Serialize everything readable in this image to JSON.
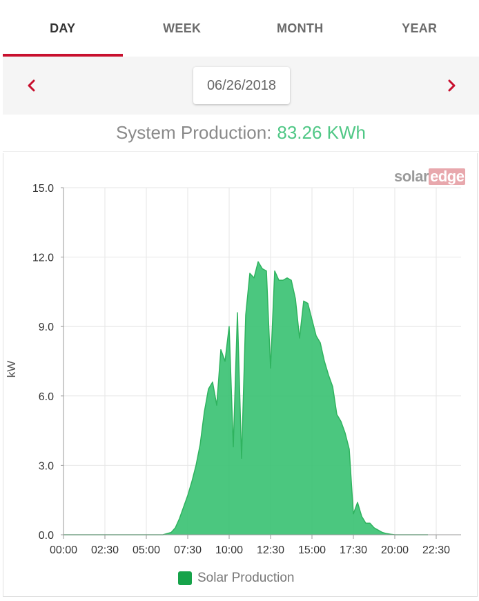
{
  "tabs": [
    {
      "label": "DAY",
      "active": true
    },
    {
      "label": "WEEK",
      "active": false
    },
    {
      "label": "MONTH",
      "active": false
    },
    {
      "label": "YEAR",
      "active": false
    }
  ],
  "date_nav": {
    "date": "06/26/2018",
    "prev_icon": "chevron-left-icon",
    "next_icon": "chevron-right-icon"
  },
  "summary": {
    "label": "System Production:",
    "value": "83.26 KWh"
  },
  "logo": {
    "text_solar": "solar",
    "text_edge": "edge"
  },
  "colors": {
    "accent": "#c8102e",
    "value_green": "#4fc785",
    "area_fill": "#3cc274",
    "area_line": "#2fb35f",
    "legend_swatch": "#16a34a"
  },
  "chart_data": {
    "type": "area",
    "ylabel": "kW",
    "xlabel": "",
    "ylim": [
      0,
      15
    ],
    "y_ticks": [
      "0.0",
      "3.0",
      "6.0",
      "9.0",
      "12.0",
      "15.0"
    ],
    "x_ticks": [
      "00:00",
      "02:30",
      "05:00",
      "07:30",
      "10:00",
      "12:30",
      "15:00",
      "17:30",
      "20:00",
      "22:30"
    ],
    "xlim_hours": [
      0,
      24
    ],
    "grid": true,
    "legend_position": "bottom",
    "series": [
      {
        "name": "Solar Production",
        "x_hours": [
          0,
          6.0,
          6.5,
          6.75,
          7.0,
          7.25,
          7.5,
          7.75,
          8.0,
          8.25,
          8.5,
          8.75,
          9.0,
          9.25,
          9.5,
          9.75,
          10.0,
          10.25,
          10.5,
          10.75,
          11.0,
          11.25,
          11.5,
          11.75,
          12.0,
          12.25,
          12.5,
          12.75,
          13.0,
          13.25,
          13.5,
          13.75,
          14.0,
          14.25,
          14.5,
          14.75,
          15.0,
          15.25,
          15.5,
          15.75,
          16.0,
          16.25,
          16.5,
          16.75,
          17.0,
          17.25,
          17.5,
          17.75,
          18.0,
          18.25,
          18.5,
          18.75,
          19.0,
          19.25,
          19.5,
          19.75,
          20.0,
          20.25,
          20.5,
          21.0,
          22.0
        ],
        "values": [
          0,
          0,
          0.1,
          0.3,
          0.7,
          1.2,
          1.7,
          2.3,
          3.0,
          3.9,
          5.3,
          6.3,
          6.6,
          5.6,
          8.0,
          7.5,
          9.0,
          3.8,
          9.6,
          3.3,
          9.5,
          11.3,
          11.1,
          11.8,
          11.5,
          11.4,
          7.2,
          11.4,
          11.0,
          11.0,
          11.1,
          11.0,
          10.2,
          8.5,
          10.1,
          10.0,
          9.3,
          8.6,
          8.3,
          7.5,
          6.9,
          6.4,
          5.2,
          4.9,
          4.4,
          3.7,
          0.9,
          1.4,
          0.8,
          0.5,
          0.5,
          0.3,
          0.2,
          0.1,
          0.05,
          0.02,
          0,
          0,
          0,
          0,
          0
        ]
      }
    ]
  }
}
